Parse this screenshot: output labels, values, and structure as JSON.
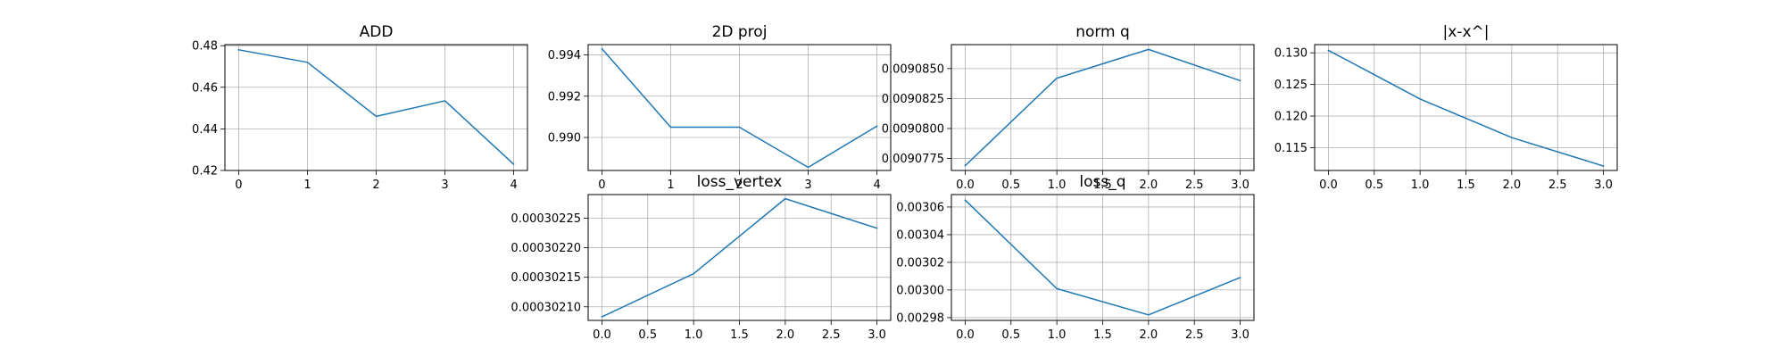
{
  "colors": {
    "series": "#1f77b4",
    "grid": "#b0b0b0",
    "frame": "#000000"
  },
  "chart_data": [
    {
      "type": "line",
      "title": "ADD",
      "grid": true,
      "x": [
        0,
        1,
        2,
        3,
        4
      ],
      "y": [
        0.478,
        0.472,
        0.446,
        0.4535,
        0.423
      ],
      "xlim": [
        -0.2,
        4.2
      ],
      "ylim": [
        0.42,
        0.4805
      ],
      "xticks": [
        0,
        1,
        2,
        3,
        4
      ],
      "xtick_labels": [
        "0",
        "1",
        "2",
        "3",
        "4"
      ],
      "yticks": [
        0.42,
        0.44,
        0.46,
        0.48
      ],
      "ytick_labels": [
        "0.42",
        "0.44",
        "0.46",
        "0.48"
      ]
    },
    {
      "type": "line",
      "title": "2D proj",
      "grid": true,
      "x": [
        0,
        1,
        2,
        3,
        4
      ],
      "y": [
        0.9943,
        0.9905,
        0.9905,
        0.98855,
        0.99055
      ],
      "xlim": [
        -0.2,
        4.2
      ],
      "ylim": [
        0.9884,
        0.9945
      ],
      "xticks": [
        0,
        1,
        2,
        3,
        4
      ],
      "xtick_labels": [
        "0",
        "1",
        "2",
        "3",
        "4"
      ],
      "yticks": [
        0.99,
        0.992,
        0.994
      ],
      "ytick_labels": [
        "0.990",
        "0.992",
        "0.994"
      ]
    },
    {
      "type": "line",
      "title": "norm q",
      "grid": true,
      "x": [
        0,
        1,
        2,
        3
      ],
      "y": [
        0.0090769,
        0.0090842,
        0.0090866,
        0.009084
      ],
      "xlim": [
        -0.15,
        3.15
      ],
      "ylim": [
        0.0090765,
        0.009087
      ],
      "xticks": [
        0,
        0.5,
        1,
        1.5,
        2,
        2.5,
        3
      ],
      "xtick_labels": [
        "0.0",
        "0.5",
        "1.0",
        "1.5",
        "2.0",
        "2.5",
        "3.0"
      ],
      "yticks": [
        0.0090775,
        0.00908,
        0.0090825,
        0.009085
      ],
      "ytick_labels": [
        "0.0090775",
        "0.0090800",
        "0.0090825",
        "0.0090850"
      ]
    },
    {
      "type": "line",
      "title": "|x-x^|",
      "grid": true,
      "x": [
        0,
        1,
        2,
        3
      ],
      "y": [
        0.1304,
        0.1227,
        0.1166,
        0.1121
      ],
      "xlim": [
        -0.15,
        3.15
      ],
      "ylim": [
        0.1114,
        0.1313
      ],
      "xticks": [
        0,
        0.5,
        1,
        1.5,
        2,
        2.5,
        3
      ],
      "xtick_labels": [
        "0.0",
        "0.5",
        "1.0",
        "1.5",
        "2.0",
        "2.5",
        "3.0"
      ],
      "yticks": [
        0.115,
        0.12,
        0.125,
        0.13
      ],
      "ytick_labels": [
        "0.115",
        "0.120",
        "0.125",
        "0.130"
      ]
    },
    {
      "type": "line",
      "title": "loss_vertex",
      "grid": true,
      "x": [
        0,
        1,
        2,
        3
      ],
      "y": [
        0.000302083,
        0.000302156,
        0.000302283,
        0.000302233
      ],
      "xlim": [
        -0.15,
        3.15
      ],
      "ylim": [
        0.000302077,
        0.00030229
      ],
      "xticks": [
        0,
        0.5,
        1,
        1.5,
        2,
        2.5,
        3
      ],
      "xtick_labels": [
        "0.0",
        "0.5",
        "1.0",
        "1.5",
        "2.0",
        "2.5",
        "3.0"
      ],
      "yticks": [
        0.0003021,
        0.00030215,
        0.0003022,
        0.00030225
      ],
      "ytick_labels": [
        "0.00030210",
        "0.00030215",
        "0.00030220",
        "0.00030225"
      ]
    },
    {
      "type": "line",
      "title": "loss_q",
      "grid": true,
      "x": [
        0,
        1,
        2,
        3
      ],
      "y": [
        0.003065,
        0.003001,
        0.002982,
        0.003009
      ],
      "xlim": [
        -0.15,
        3.15
      ],
      "ylim": [
        0.002978,
        0.003069
      ],
      "xticks": [
        0,
        0.5,
        1,
        1.5,
        2,
        2.5,
        3
      ],
      "xtick_labels": [
        "0.0",
        "0.5",
        "1.0",
        "1.5",
        "2.0",
        "2.5",
        "3.0"
      ],
      "yticks": [
        0.00298,
        0.003,
        0.00302,
        0.00304,
        0.00306
      ],
      "ytick_labels": [
        "0.00298",
        "0.00300",
        "0.00302",
        "0.00304",
        "0.00306"
      ]
    }
  ]
}
